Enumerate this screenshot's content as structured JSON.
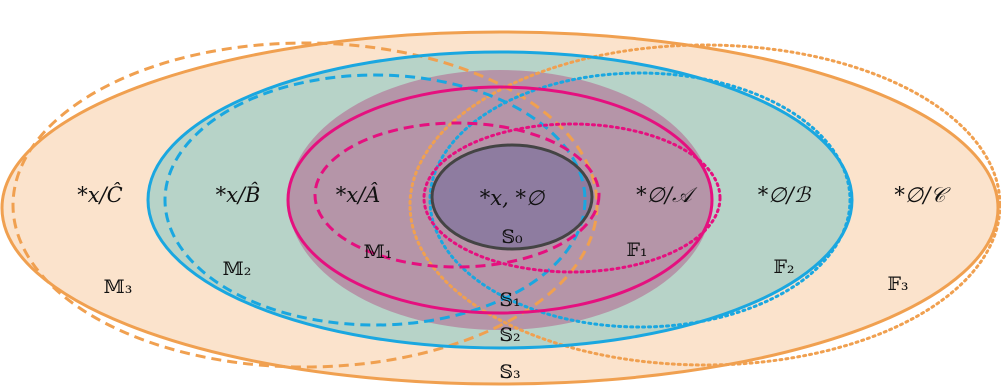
{
  "colors": {
    "orange": "#F0A050",
    "orange_fill": "#FBE3CC",
    "blue": "#1AA7E0",
    "blue_fill": "#B7D3C8",
    "magenta": "#E5107F",
    "purple_fill": "#B595A8",
    "center_fill": "#8E7CA0",
    "dark": "#444444"
  },
  "labels": {
    "s0": "𝕊₀",
    "s1": "𝕊₁",
    "s2": "𝕊₂",
    "s3": "𝕊₃",
    "m1": "𝕄₁",
    "m2": "𝕄₂",
    "m3": "𝕄₃",
    "f1": "𝔽₁",
    "f2": "𝔽₂",
    "f3": "𝔽₃",
    "center": "*x, *∅",
    "inner_left": "*x/Â",
    "mid_left": "*x/B̂",
    "outer_left": "*x/Ĉ",
    "inner_right": "*∅/𝒜",
    "mid_right": "*∅/ℬ",
    "outer_right": "*∅/𝒞"
  }
}
